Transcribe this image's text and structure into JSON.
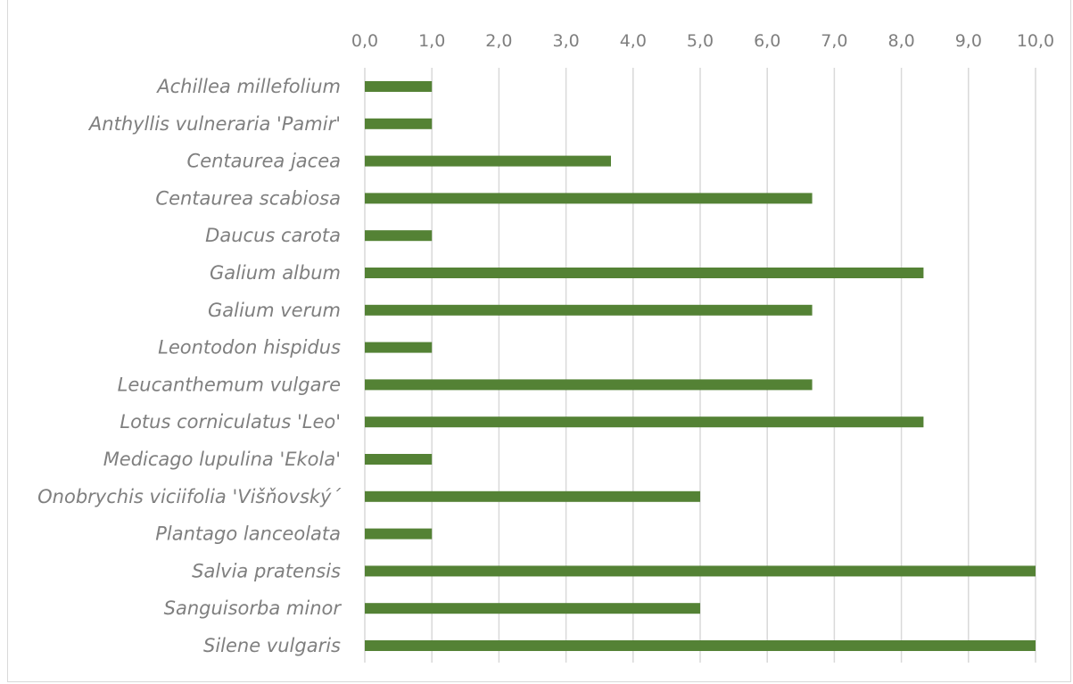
{
  "chart_data": {
    "type": "bar",
    "orientation": "horizontal",
    "title": "",
    "xlabel": "",
    "ylabel": "",
    "xlim": [
      0,
      10
    ],
    "x_ticks": [
      "0,0",
      "1,0",
      "2,0",
      "3,0",
      "4,0",
      "5,0",
      "6,0",
      "7,0",
      "8,0",
      "9,0",
      "10,0"
    ],
    "x_axis_position": "top",
    "grid": "vertical",
    "legend": "none",
    "bar_color": "#548235",
    "categories": [
      "Achillea millefolium",
      "Anthyllis vulneraria 'Pamir'",
      "Centaurea jacea",
      "Centaurea scabiosa",
      "Daucus carota",
      "Galium album",
      "Galium verum",
      "Leontodon hispidus",
      "Leucanthemum vulgare",
      "Lotus corniculatus 'Leo'",
      "Medicago lupulina 'Ekola'",
      "Onobrychis viciifolia 'Višňovský´",
      "Plantago lanceolata",
      "Salvia pratensis",
      "Sanguisorba minor",
      "Silene vulgaris"
    ],
    "values": [
      1.0,
      1.0,
      3.67,
      6.67,
      1.0,
      8.33,
      6.67,
      1.0,
      6.67,
      8.33,
      1.0,
      5.0,
      1.0,
      10.0,
      5.0,
      10.0
    ]
  }
}
